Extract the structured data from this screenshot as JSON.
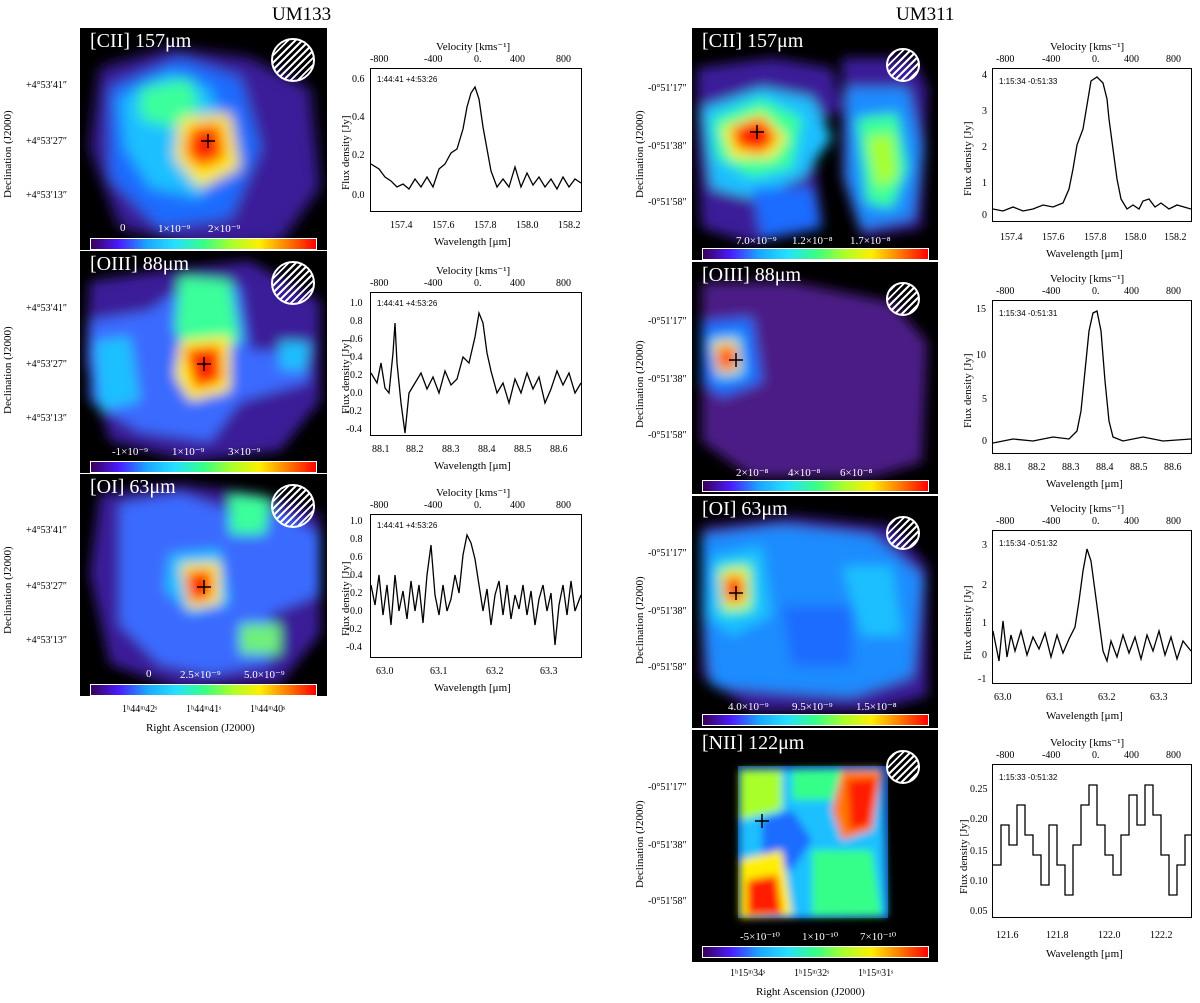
{
  "figure": {
    "left_title": "UM133",
    "right_title": "UM311"
  },
  "common": {
    "dec_axis_title": "Declination (J2000)",
    "ra_axis_title": "Right Ascension (J2000)",
    "velocity_axis_title": "Velocity [kms⁻¹]",
    "flux_axis_title": "Flux density [Jy]",
    "wavelength_axis_title": "Wavelength [μm]",
    "velocity_ticks": [
      "-800",
      "-400",
      "0.",
      "400",
      "800"
    ],
    "beam_icon": "hatched-beam-icon",
    "source_marker": "crosshair-icon"
  },
  "um133": {
    "dec_ticks": [
      "+4°53′41″",
      "+4°53′27″",
      "+4°53′13″"
    ],
    "ra_ticks": [
      "1ʰ44ᵐ42ˢ",
      "1ʰ44ᵐ41ˢ",
      "1ʰ44ᵐ40ˢ"
    ],
    "panels": [
      {
        "line": "[CII] 157μm",
        "cbar_ticks": [
          "0",
          "1×10⁻⁹",
          "2×10⁻⁹"
        ],
        "coord": "1:44:41 +4:53:26",
        "flux_ticks": [
          "0.6",
          "0.4",
          "0.2",
          "0.0"
        ],
        "wave_ticks": [
          "157.4",
          "157.6",
          "157.8",
          "158.0",
          "158.2"
        ]
      },
      {
        "line": "[OIII] 88μm",
        "cbar_ticks": [
          "-1×10⁻⁹",
          "1×10⁻⁹",
          "3×10⁻⁹"
        ],
        "coord": "1:44:41 +4:53:26",
        "flux_ticks": [
          "1.0",
          "0.8",
          "0.6",
          "0.4",
          "0.2",
          "0.0",
          "-0.2",
          "-0.4"
        ],
        "wave_ticks": [
          "88.1",
          "88.2",
          "88.3",
          "88.4",
          "88.5",
          "88.6"
        ]
      },
      {
        "line": "[OI] 63μm",
        "cbar_ticks": [
          "0",
          "2.5×10⁻⁹",
          "5.0×10⁻⁹"
        ],
        "coord": "1:44:41 +4:53:26",
        "flux_ticks": [
          "1.0",
          "0.8",
          "0.6",
          "0.4",
          "0.2",
          "0.0",
          "-0.2",
          "-0.4"
        ],
        "wave_ticks": [
          "63.0",
          "63.1",
          "63.2",
          "63.3"
        ]
      }
    ]
  },
  "um311": {
    "dec_ticks": [
      "-0°51′17″",
      "-0°51′38″",
      "-0°51′58″"
    ],
    "ra_ticks": [
      "1ʰ15ᵐ34ˢ",
      "1ʰ15ᵐ32ˢ",
      "1ʰ15ᵐ31ˢ"
    ],
    "panels": [
      {
        "line": "[CII] 157μm",
        "cbar_ticks": [
          "7.0×10⁻⁹",
          "1.2×10⁻⁸",
          "1.7×10⁻⁸"
        ],
        "coord": "1:15:34 -0:51:33",
        "flux_ticks": [
          "4",
          "3",
          "2",
          "1",
          "0"
        ],
        "wave_ticks": [
          "157.4",
          "157.6",
          "157.8",
          "158.0",
          "158.2"
        ]
      },
      {
        "line": "[OIII] 88μm",
        "cbar_ticks": [
          "2×10⁻⁸",
          "4×10⁻⁸",
          "6×10⁻⁸"
        ],
        "coord": "1:15:34 -0:51:31",
        "flux_ticks": [
          "15",
          "10",
          "5",
          "0"
        ],
        "wave_ticks": [
          "88.1",
          "88.2",
          "88.3",
          "88.4",
          "88.5",
          "88.6"
        ]
      },
      {
        "line": "[OI] 63μm",
        "cbar_ticks": [
          "4.0×10⁻⁹",
          "9.5×10⁻⁹",
          "1.5×10⁻⁸"
        ],
        "coord": "1:15:34 -0:51:32",
        "flux_ticks": [
          "3",
          "2",
          "1",
          "0",
          "-1"
        ],
        "wave_ticks": [
          "63.0",
          "63.1",
          "63.2",
          "63.3"
        ]
      },
      {
        "line": "[NII] 122μm",
        "cbar_ticks": [
          "-5×10⁻¹⁰",
          "1×10⁻¹⁰",
          "7×10⁻¹⁰"
        ],
        "coord": "1:15:33 -0:51:32",
        "flux_ticks": [
          "0.25",
          "0.20",
          "0.15",
          "0.10",
          "0.05"
        ],
        "wave_ticks": [
          "121.6",
          "121.8",
          "122.0",
          "122.2"
        ]
      }
    ]
  }
}
